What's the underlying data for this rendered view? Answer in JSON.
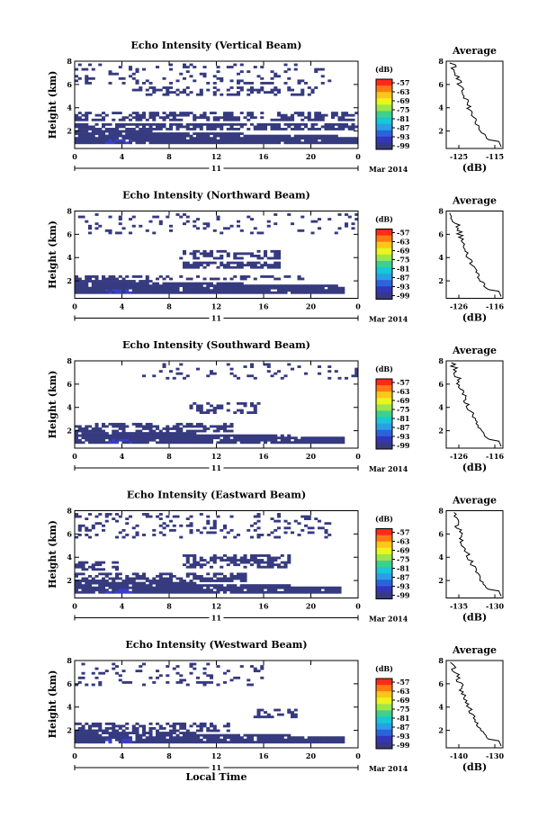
{
  "footer": {
    "xlabel": "Local Time"
  },
  "colorbar": {
    "label": "(dB)",
    "ticks": [
      "-57",
      "-63",
      "-69",
      "-75",
      "-81",
      "-87",
      "-93",
      "-99"
    ],
    "colors": [
      "#ff2a1a",
      "#ff7a12",
      "#ffc61a",
      "#e9f51d",
      "#9be64c",
      "#3fd08c",
      "#16c8d8",
      "#2a9fe6",
      "#2c63dc",
      "#3435b8",
      "#363a7f"
    ]
  },
  "chart_data": [
    {
      "type": "heatmap",
      "title": "Echo Intensity (Vertical Beam)",
      "ylabel": "Height (km)",
      "x_ticks": [
        "0",
        "4",
        "8",
        "12",
        "16",
        "20",
        "0"
      ],
      "y_ticks": [
        "8",
        "6",
        "4",
        "2"
      ],
      "ylim": [
        0.5,
        8.0
      ],
      "date_day": "11",
      "date_label": "Mar 2014",
      "profile": {
        "title": "Average",
        "xlabel": "(dB)",
        "x_ticks": [
          "-125",
          "-115"
        ],
        "y_ticks": [
          "8",
          "6",
          "4",
          "2"
        ]
      }
    },
    {
      "type": "heatmap",
      "title": "Echo Intensity (Northward Beam)",
      "ylabel": "Height (km)",
      "x_ticks": [
        "0",
        "4",
        "8",
        "12",
        "16",
        "20",
        "0"
      ],
      "y_ticks": [
        "8",
        "6",
        "4",
        "2"
      ],
      "ylim": [
        0.5,
        8.0
      ],
      "date_day": "11",
      "date_label": "Mar 2014",
      "profile": {
        "title": "Average",
        "xlabel": "(dB)",
        "x_ticks": [
          "-126",
          "-116"
        ],
        "y_ticks": [
          "8",
          "6",
          "4",
          "2"
        ]
      }
    },
    {
      "type": "heatmap",
      "title": "Echo Intensity (Southward Beam)",
      "ylabel": "Height (km)",
      "x_ticks": [
        "0",
        "4",
        "8",
        "12",
        "16",
        "20",
        "0"
      ],
      "y_ticks": [
        "8",
        "6",
        "4",
        "2"
      ],
      "ylim": [
        0.5,
        8.0
      ],
      "date_day": "11",
      "date_label": "Mar 2014",
      "profile": {
        "title": "Average",
        "xlabel": "(dB)",
        "x_ticks": [
          "-126",
          "-116"
        ],
        "y_ticks": [
          "8",
          "6",
          "4",
          "2"
        ]
      }
    },
    {
      "type": "heatmap",
      "title": "Echo Intensity (Eastward Beam)",
      "ylabel": "Height (km)",
      "x_ticks": [
        "0",
        "4",
        "8",
        "12",
        "16",
        "20",
        "0"
      ],
      "y_ticks": [
        "8",
        "6",
        "4",
        "2"
      ],
      "ylim": [
        0.5,
        8.0
      ],
      "date_day": "11",
      "date_label": "Mar 2014",
      "profile": {
        "title": "Average",
        "xlabel": "(dB)",
        "x_ticks": [
          "-135",
          "-130"
        ],
        "y_ticks": [
          "8",
          "6",
          "4",
          "2"
        ]
      }
    },
    {
      "type": "heatmap",
      "title": "Echo Intensity (Westward Beam)",
      "ylabel": "Height (km)",
      "x_ticks": [
        "0",
        "4",
        "8",
        "12",
        "16",
        "20",
        "0"
      ],
      "y_ticks": [
        "8",
        "6",
        "4",
        "2"
      ],
      "ylim": [
        0.5,
        8.0
      ],
      "date_day": "11",
      "date_label": "Mar 2014",
      "profile": {
        "title": "Average",
        "xlabel": "(dB)",
        "x_ticks": [
          "-140",
          "-130"
        ],
        "y_ticks": [
          "8",
          "6",
          "4",
          "2"
        ]
      }
    }
  ]
}
